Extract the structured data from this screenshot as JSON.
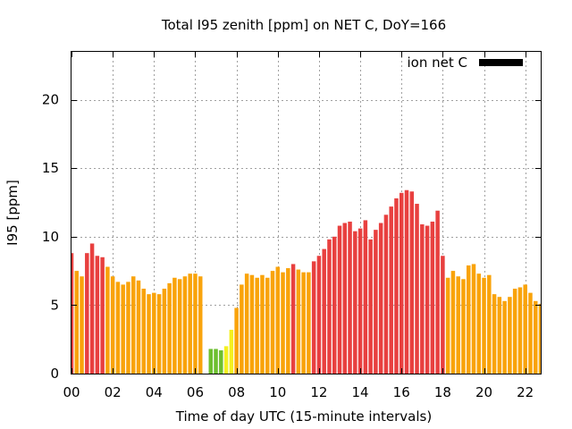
{
  "chart_data": {
    "type": "bar",
    "title": "Total I95 zenith [ppm] on NET C, DoY=166",
    "xlabel": "Time of day UTC (15-minute intervals)",
    "ylabel": "I95 [ppm]",
    "xlim": [
      0,
      22.75
    ],
    "ylim": [
      0,
      23.5
    ],
    "x_step_hours": 0.25,
    "xticks": [
      "00",
      "02",
      "04",
      "06",
      "08",
      "10",
      "12",
      "14",
      "16",
      "18",
      "20",
      "22"
    ],
    "yticks": [
      "0",
      "5",
      "10",
      "15",
      "20"
    ],
    "grid": true,
    "legend": {
      "position": "top-right",
      "label": "ion net C",
      "color": "#000000"
    },
    "colors": {
      "red": "#e8403f",
      "orange": "#f9a30a",
      "yellow": "#f4f020",
      "green": "#6dbf2f"
    },
    "values": [
      8.8,
      7.5,
      7.1,
      8.8,
      9.5,
      8.6,
      8.5,
      7.8,
      7.1,
      6.7,
      6.5,
      6.7,
      7.1,
      6.8,
      6.2,
      5.8,
      5.9,
      5.8,
      6.2,
      6.6,
      7.0,
      6.9,
      7.1,
      7.3,
      7.3,
      7.1,
      0.0,
      1.8,
      1.8,
      1.7,
      2.0,
      3.2,
      4.8,
      6.5,
      7.3,
      7.2,
      7.0,
      7.2,
      7.0,
      7.5,
      7.8,
      7.4,
      7.7,
      8.0,
      7.6,
      7.4,
      7.4,
      8.2,
      8.6,
      9.1,
      9.8,
      10.0,
      10.8,
      11.0,
      11.1,
      10.4,
      10.6,
      11.2,
      9.8,
      10.5,
      11.0,
      11.6,
      12.2,
      12.8,
      13.2,
      13.4,
      13.3,
      12.4,
      10.9,
      10.8,
      11.1,
      11.9,
      8.6,
      7.0,
      7.5,
      7.1,
      6.9,
      7.9,
      8.0,
      7.3,
      7.0,
      7.2,
      5.8,
      5.6,
      5.3,
      5.6,
      6.2,
      6.3,
      6.5,
      5.9,
      5.3,
      5.1,
      5.4
    ],
    "bar_colors": [
      "red",
      "orange",
      "orange",
      "red",
      "red",
      "red",
      "red",
      "orange",
      "orange",
      "orange",
      "orange",
      "orange",
      "orange",
      "orange",
      "orange",
      "orange",
      "orange",
      "orange",
      "orange",
      "orange",
      "orange",
      "orange",
      "orange",
      "orange",
      "orange",
      "orange",
      "orange",
      "green",
      "green",
      "green",
      "yellow",
      "yellow",
      "orange",
      "orange",
      "orange",
      "orange",
      "orange",
      "orange",
      "orange",
      "orange",
      "orange",
      "orange",
      "orange",
      "red",
      "orange",
      "orange",
      "orange",
      "red",
      "red",
      "red",
      "red",
      "red",
      "red",
      "red",
      "red",
      "red",
      "red",
      "red",
      "red",
      "red",
      "red",
      "red",
      "red",
      "red",
      "red",
      "red",
      "red",
      "red",
      "red",
      "red",
      "red",
      "red",
      "red",
      "orange",
      "orange",
      "orange",
      "orange",
      "orange",
      "orange",
      "orange",
      "orange",
      "orange",
      "orange",
      "orange",
      "orange",
      "orange",
      "orange",
      "orange",
      "orange",
      "orange",
      "orange",
      "orange",
      "orange"
    ]
  }
}
